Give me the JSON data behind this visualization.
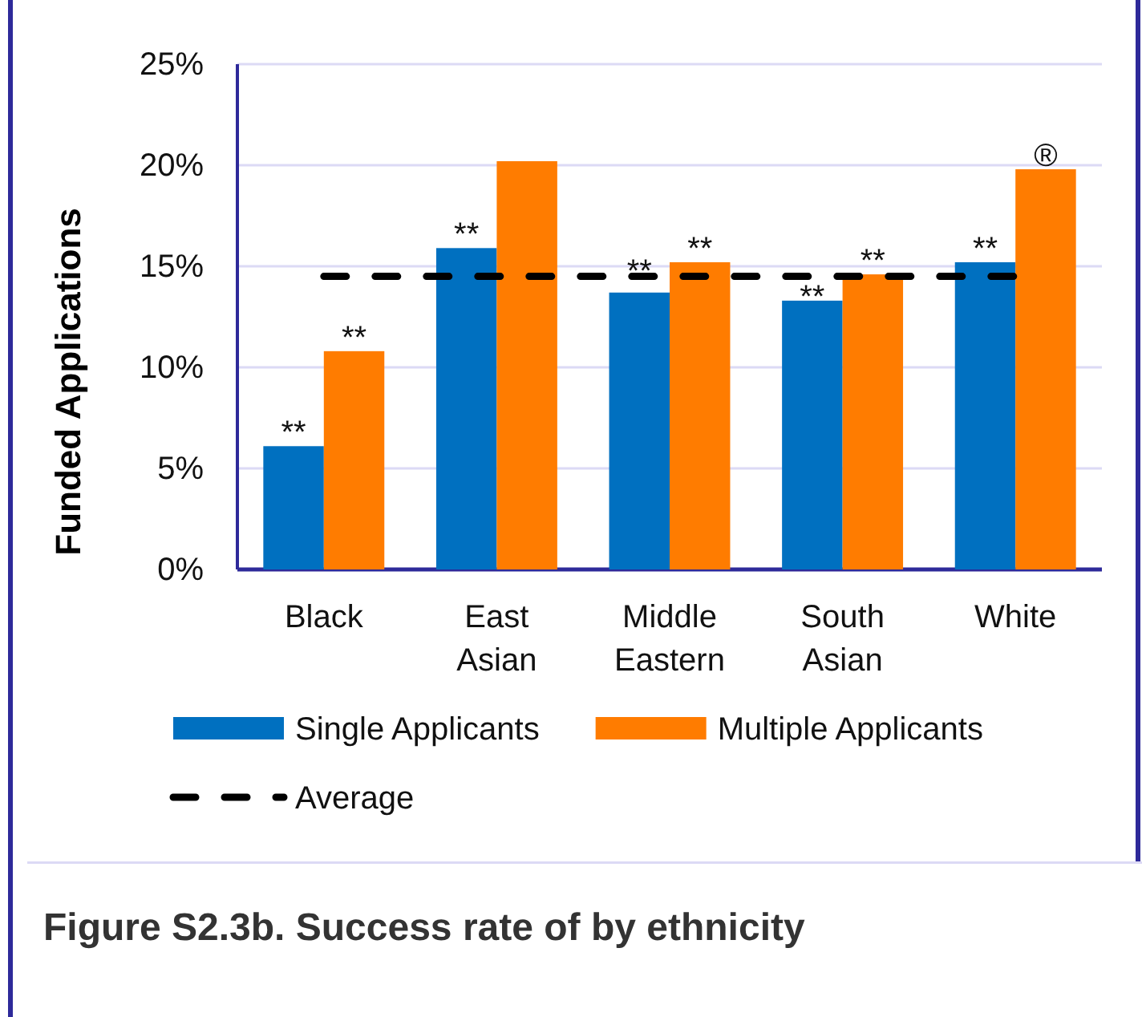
{
  "chart_data": {
    "type": "bar",
    "title": "Figure S2.3b. Success rate of by ethnicity",
    "ylabel": "Funded Applications",
    "categories": [
      "Black",
      "East Asian",
      "Middle Eastern",
      "South Asian",
      "White"
    ],
    "series": [
      {
        "name": "Single Applicants",
        "color": "#0070c0",
        "values": [
          6.1,
          15.9,
          13.7,
          13.3,
          15.2
        ]
      },
      {
        "name": "Multiple Applicants",
        "color": "#ff7c00",
        "values": [
          10.8,
          20.2,
          15.2,
          14.6,
          19.8
        ]
      },
      {
        "name": "Average",
        "type": "line",
        "color": "#000000",
        "values": [
          14.5,
          14.5,
          14.5,
          14.5,
          14.5
        ]
      }
    ],
    "ylim": [
      0,
      25
    ],
    "yticks": [
      {
        "value": 0,
        "label": "0%"
      },
      {
        "value": 5,
        "label": "5%"
      },
      {
        "value": 10,
        "label": "10%"
      },
      {
        "value": 15,
        "label": "15%"
      },
      {
        "value": 20,
        "label": "20%"
      },
      {
        "value": 25,
        "label": "25%"
      }
    ],
    "grid": "y",
    "legend": "bottom",
    "line_style": "dashed",
    "annotations": [
      {
        "text": "**",
        "x": "Black",
        "y": 6.1
      },
      {
        "text": "**",
        "x": "Black",
        "y": 10.8
      },
      {
        "text": "**",
        "x": "East Asian",
        "y": 15.9
      },
      {
        "text": "**",
        "x": "Middle Eastern",
        "y": 13.7
      },
      {
        "text": "**",
        "x": "Middle Eastern",
        "y": 15.2
      },
      {
        "text": "**",
        "x": "South Asian",
        "y": 13.3
      },
      {
        "text": "**",
        "x": "South Asian",
        "y": 14.6
      },
      {
        "text": "**",
        "x": "White",
        "y": 15.2
      },
      {
        "text": "®",
        "x": "White",
        "y": 19.8
      }
    ]
  }
}
